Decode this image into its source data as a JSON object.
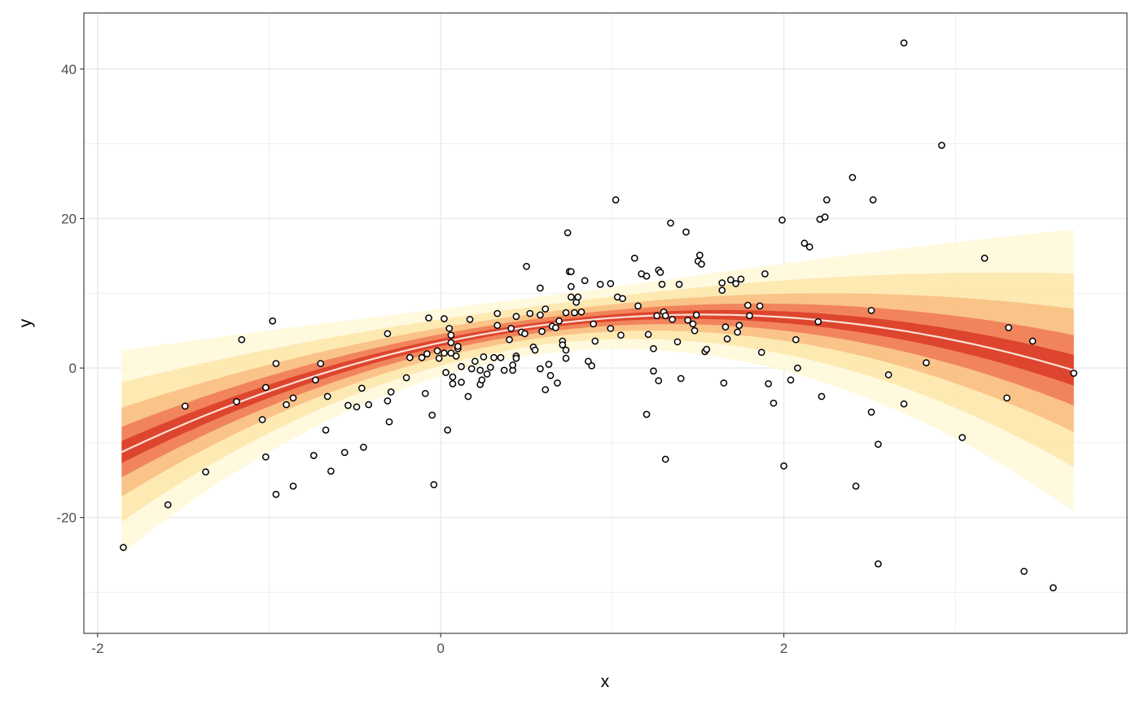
{
  "chart_data": {
    "type": "scatter",
    "title": "",
    "xlabel": "x",
    "ylabel": "y",
    "xlim": [
      -2.08,
      4.0
    ],
    "ylim": [
      -35.5,
      47.5
    ],
    "x_ticks": [
      -2,
      0,
      2
    ],
    "x_tick_labels": [
      "-2",
      "0",
      "2"
    ],
    "y_ticks": [
      -20,
      0,
      20,
      40
    ],
    "y_tick_labels": [
      "-20",
      "0",
      "20",
      "40"
    ],
    "grid": true,
    "legend": "none",
    "fit_curve": {
      "description_free": true,
      "type": "quadratic",
      "coefficients": [
        3.4,
        4.9,
        -1.6
      ],
      "x_range": [
        -1.86,
        3.69
      ]
    },
    "uncertainty_band": {
      "colors": [
        "#fff8d8",
        "#fde5a6",
        "#f8b579",
        "#ec6a48",
        "#d7301f"
      ],
      "curve_color": "#fde0d6"
    },
    "points": [
      [
        -1.85,
        -24.0
      ],
      [
        -1.59,
        -18.3
      ],
      [
        -1.49,
        -5.1
      ],
      [
        -1.37,
        -13.9
      ],
      [
        -1.19,
        -4.5
      ],
      [
        -1.16,
        3.8
      ],
      [
        -1.04,
        -6.9
      ],
      [
        -1.02,
        -2.6
      ],
      [
        -1.02,
        -11.9
      ],
      [
        -0.98,
        6.3
      ],
      [
        -0.96,
        -16.9
      ],
      [
        -0.96,
        0.6
      ],
      [
        -0.9,
        -4.9
      ],
      [
        -0.86,
        -4.0
      ],
      [
        -0.86,
        -15.8
      ],
      [
        -0.74,
        -11.7
      ],
      [
        -0.73,
        -1.6
      ],
      [
        -0.7,
        0.6
      ],
      [
        -0.67,
        -8.3
      ],
      [
        -0.66,
        -3.8
      ],
      [
        -0.64,
        -13.8
      ],
      [
        -0.56,
        -11.3
      ],
      [
        -0.54,
        -5.0
      ],
      [
        -0.49,
        -5.2
      ],
      [
        -0.46,
        -2.7
      ],
      [
        -0.45,
        -10.6
      ],
      [
        -0.42,
        -4.9
      ],
      [
        -0.31,
        4.6
      ],
      [
        -0.31,
        -4.4
      ],
      [
        -0.3,
        -7.2
      ],
      [
        -0.29,
        -3.2
      ],
      [
        -0.2,
        -1.3
      ],
      [
        -0.18,
        1.4
      ],
      [
        -0.11,
        1.4
      ],
      [
        -0.09,
        -3.4
      ],
      [
        -0.08,
        1.9
      ],
      [
        -0.07,
        6.7
      ],
      [
        -0.05,
        -6.3
      ],
      [
        -0.04,
        -15.6
      ],
      [
        -0.02,
        2.3
      ],
      [
        -0.01,
        1.3
      ],
      [
        0.02,
        6.6
      ],
      [
        0.02,
        2.0
      ],
      [
        0.03,
        -0.6
      ],
      [
        0.04,
        -8.3
      ],
      [
        0.05,
        5.3
      ],
      [
        0.06,
        4.4
      ],
      [
        0.06,
        3.4
      ],
      [
        0.06,
        2.0
      ],
      [
        0.07,
        -2.1
      ],
      [
        0.07,
        -1.2
      ],
      [
        0.09,
        1.6
      ],
      [
        0.1,
        2.6
      ],
      [
        0.1,
        2.9
      ],
      [
        0.12,
        -1.9
      ],
      [
        0.12,
        0.2
      ],
      [
        0.16,
        -3.8
      ],
      [
        0.17,
        6.5
      ],
      [
        0.18,
        -0.1
      ],
      [
        0.2,
        0.9
      ],
      [
        0.23,
        -0.3
      ],
      [
        0.23,
        -2.2
      ],
      [
        0.24,
        -1.6
      ],
      [
        0.25,
        1.5
      ],
      [
        0.27,
        -0.8
      ],
      [
        0.29,
        0.1
      ],
      [
        0.31,
        1.4
      ],
      [
        0.33,
        7.3
      ],
      [
        0.33,
        5.7
      ],
      [
        0.35,
        1.4
      ],
      [
        0.37,
        -0.3
      ],
      [
        0.4,
        3.8
      ],
      [
        0.41,
        5.3
      ],
      [
        0.42,
        -0.3
      ],
      [
        0.42,
        0.4
      ],
      [
        0.44,
        1.6
      ],
      [
        0.44,
        1.3
      ],
      [
        0.44,
        6.9
      ],
      [
        0.47,
        4.8
      ],
      [
        0.49,
        4.6
      ],
      [
        0.5,
        13.6
      ],
      [
        0.52,
        7.3
      ],
      [
        0.54,
        2.8
      ],
      [
        0.55,
        2.4
      ],
      [
        0.58,
        -0.1
      ],
      [
        0.58,
        10.7
      ],
      [
        0.58,
        7.1
      ],
      [
        0.59,
        4.9
      ],
      [
        0.61,
        7.9
      ],
      [
        0.61,
        -2.9
      ],
      [
        0.63,
        0.5
      ],
      [
        0.64,
        -1.0
      ],
      [
        0.65,
        5.6
      ],
      [
        0.67,
        5.4
      ],
      [
        0.68,
        -2.0
      ],
      [
        0.69,
        6.3
      ],
      [
        0.71,
        3.6
      ],
      [
        0.71,
        3.1
      ],
      [
        0.73,
        2.4
      ],
      [
        0.73,
        1.3
      ],
      [
        0.73,
        7.4
      ],
      [
        0.74,
        18.1
      ],
      [
        0.75,
        12.9
      ],
      [
        0.76,
        10.9
      ],
      [
        0.76,
        12.9
      ],
      [
        0.76,
        9.5
      ],
      [
        0.78,
        7.4
      ],
      [
        0.79,
        8.8
      ],
      [
        0.8,
        9.5
      ],
      [
        0.82,
        7.5
      ],
      [
        0.84,
        11.7
      ],
      [
        0.86,
        0.9
      ],
      [
        0.88,
        0.3
      ],
      [
        0.89,
        5.9
      ],
      [
        0.9,
        3.6
      ],
      [
        0.93,
        11.2
      ],
      [
        0.99,
        11.3
      ],
      [
        0.99,
        5.3
      ],
      [
        1.02,
        22.5
      ],
      [
        1.03,
        9.5
      ],
      [
        1.06,
        9.3
      ],
      [
        1.05,
        4.4
      ],
      [
        1.13,
        14.7
      ],
      [
        1.15,
        8.3
      ],
      [
        1.17,
        12.6
      ],
      [
        1.2,
        12.3
      ],
      [
        1.2,
        -6.2
      ],
      [
        1.21,
        4.5
      ],
      [
        1.24,
        2.6
      ],
      [
        1.24,
        -0.4
      ],
      [
        1.26,
        7.0
      ],
      [
        1.27,
        13.1
      ],
      [
        1.27,
        -1.7
      ],
      [
        1.28,
        12.8
      ],
      [
        1.29,
        11.2
      ],
      [
        1.3,
        7.5
      ],
      [
        1.31,
        7.0
      ],
      [
        1.31,
        -12.2
      ],
      [
        1.34,
        19.4
      ],
      [
        1.35,
        6.5
      ],
      [
        1.38,
        3.5
      ],
      [
        1.39,
        11.2
      ],
      [
        1.4,
        -1.4
      ],
      [
        1.43,
        18.2
      ],
      [
        1.44,
        6.4
      ],
      [
        1.47,
        5.9
      ],
      [
        1.48,
        5.0
      ],
      [
        1.49,
        7.1
      ],
      [
        1.5,
        14.3
      ],
      [
        1.51,
        15.1
      ],
      [
        1.52,
        13.9
      ],
      [
        1.54,
        2.2
      ],
      [
        1.55,
        2.5
      ],
      [
        1.64,
        11.4
      ],
      [
        1.64,
        10.4
      ],
      [
        1.65,
        -2.0
      ],
      [
        1.66,
        5.5
      ],
      [
        1.67,
        3.9
      ],
      [
        1.69,
        11.8
      ],
      [
        1.72,
        11.3
      ],
      [
        1.73,
        4.8
      ],
      [
        1.74,
        5.7
      ],
      [
        1.75,
        11.9
      ],
      [
        1.79,
        8.4
      ],
      [
        1.8,
        7.0
      ],
      [
        1.86,
        8.3
      ],
      [
        1.87,
        2.1
      ],
      [
        1.89,
        12.6
      ],
      [
        1.91,
        -2.1
      ],
      [
        1.94,
        -4.7
      ],
      [
        1.99,
        19.8
      ],
      [
        2.0,
        -13.1
      ],
      [
        2.04,
        -1.6
      ],
      [
        2.07,
        3.8
      ],
      [
        2.08,
        0.0
      ],
      [
        2.12,
        16.7
      ],
      [
        2.15,
        16.2
      ],
      [
        2.2,
        6.2
      ],
      [
        2.21,
        19.9
      ],
      [
        2.22,
        -3.8
      ],
      [
        2.24,
        20.2
      ],
      [
        2.25,
        22.5
      ],
      [
        2.4,
        25.5
      ],
      [
        2.42,
        -15.8
      ],
      [
        2.51,
        7.7
      ],
      [
        2.51,
        -5.9
      ],
      [
        2.52,
        22.5
      ],
      [
        2.55,
        -10.2
      ],
      [
        2.55,
        -26.2
      ],
      [
        2.61,
        -0.9
      ],
      [
        2.7,
        43.5
      ],
      [
        2.7,
        -4.8
      ],
      [
        2.83,
        0.7
      ],
      [
        2.92,
        29.8
      ],
      [
        3.04,
        -9.3
      ],
      [
        3.17,
        14.7
      ],
      [
        3.3,
        -4.0
      ],
      [
        3.31,
        5.4
      ],
      [
        3.4,
        -27.2
      ],
      [
        3.45,
        3.6
      ],
      [
        3.57,
        -29.4
      ],
      [
        3.69,
        -0.7
      ]
    ]
  }
}
